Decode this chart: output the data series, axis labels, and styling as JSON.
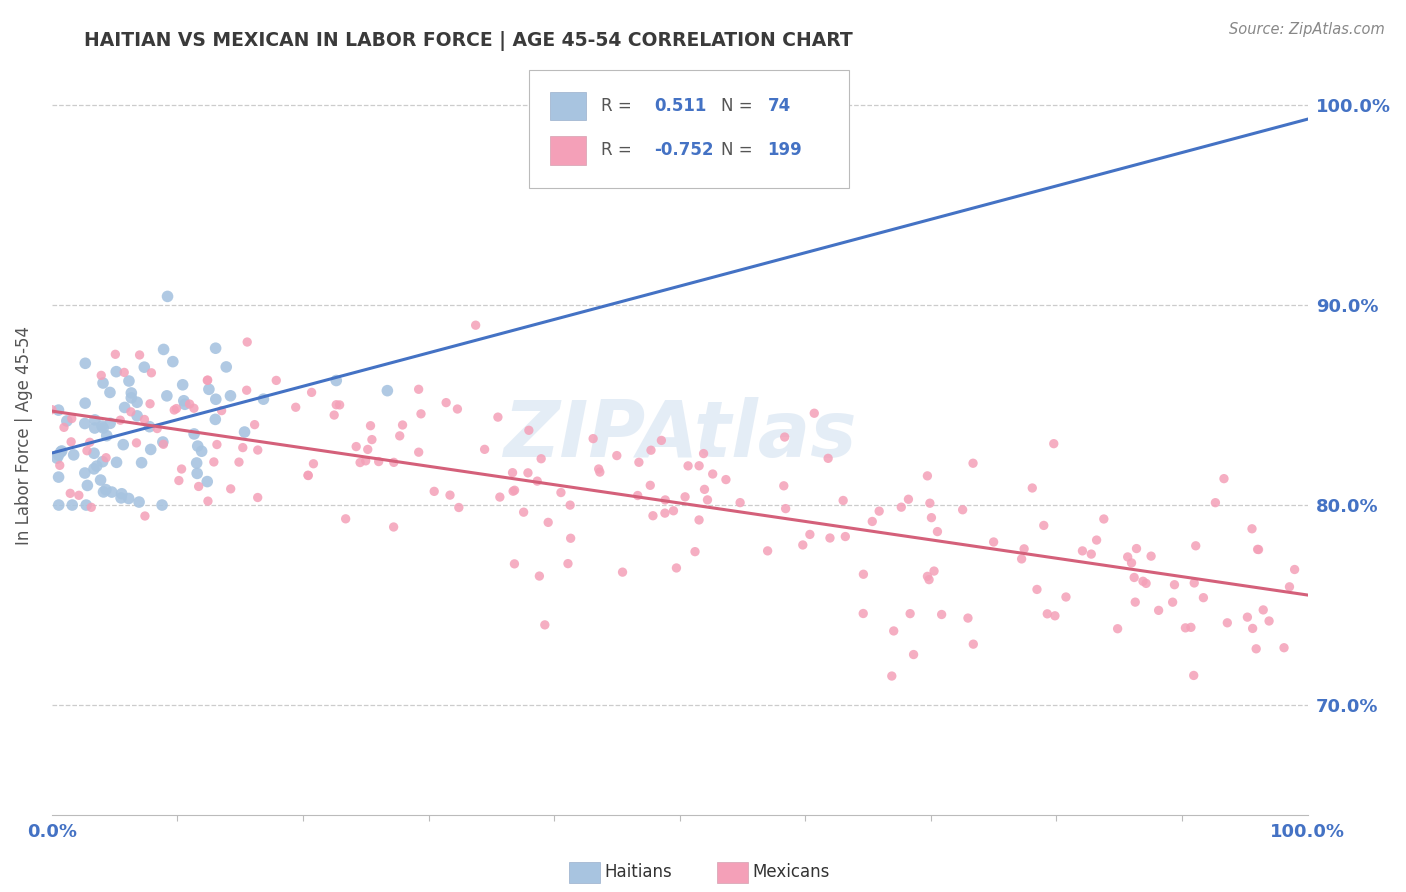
{
  "title": "HAITIAN VS MEXICAN IN LABOR FORCE | AGE 45-54 CORRELATION CHART",
  "source_text": "Source: ZipAtlas.com",
  "ylabel": "In Labor Force | Age 45-54",
  "xlim": [
    0.0,
    1.0
  ],
  "ylim": [
    0.645,
    1.025
  ],
  "yticks": [
    0.7,
    0.8,
    0.9,
    1.0
  ],
  "ytick_labels": [
    "70.0%",
    "80.0%",
    "90.0%",
    "100.0%"
  ],
  "haitian_color": "#a8c4e0",
  "mexican_color": "#f4a0b8",
  "haitian_line_color": "#4472c4",
  "mexican_line_color": "#d4607a",
  "haitian_R": 0.511,
  "haitian_N": 74,
  "mexican_R": -0.752,
  "mexican_N": 199,
  "haitian_line_x0": 0.0,
  "haitian_line_y0": 0.826,
  "haitian_line_x1": 1.0,
  "haitian_line_y1": 0.993,
  "mexican_line_x0": 0.0,
  "mexican_line_y0": 0.847,
  "mexican_line_x1": 1.0,
  "mexican_line_y1": 0.755,
  "watermark_text": "ZIPAtlas",
  "title_color": "#3a3a3a",
  "axis_tick_color": "#4472c4",
  "legend_R_color": "#4472c4",
  "legend_N_color": "#4472c4",
  "background_color": "#ffffff",
  "grid_color": "#cccccc",
  "grid_linestyle": "--"
}
